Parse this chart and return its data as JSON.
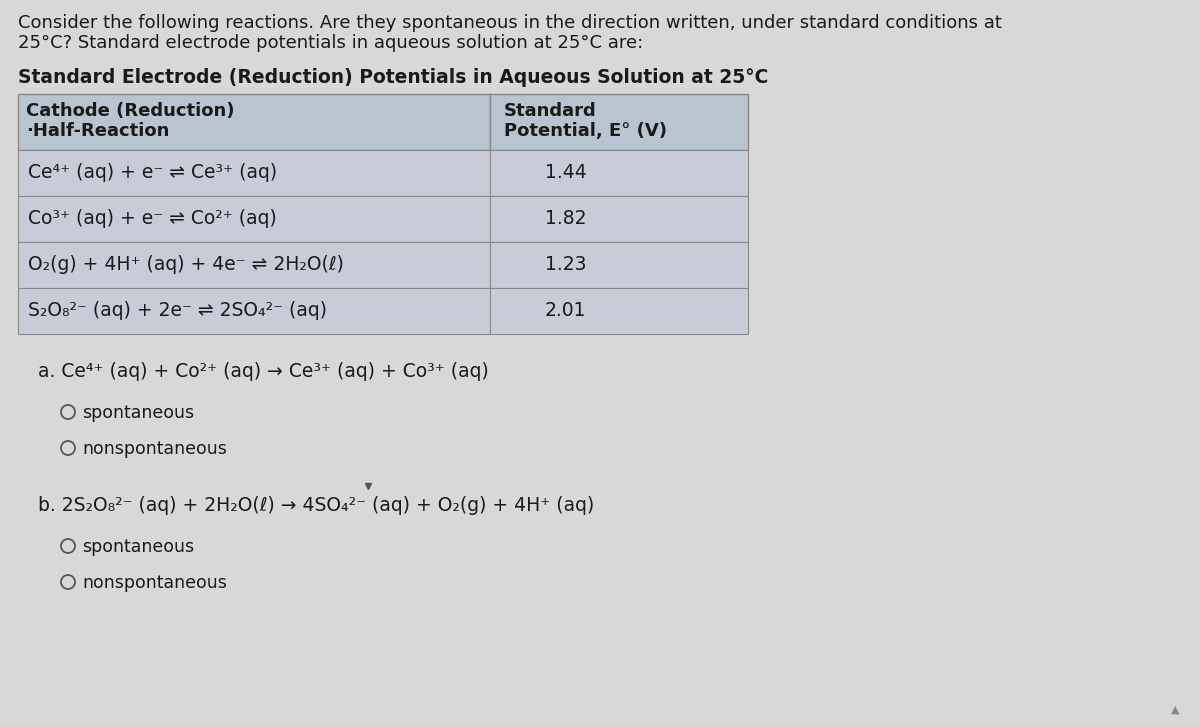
{
  "bg_color": "#d8d8d8",
  "intro_text_line1": "Consider the following reactions. Are they spontaneous in the direction written, under standard conditions at",
  "intro_text_line2": "25°C? Standard electrode potentials in aqueous solution at 25°C are:",
  "table_title": "Standard Electrode (Reduction) Potentials in Aqueous Solution at 25°C",
  "col1_header_line1": "Cathode (Reduction)",
  "col1_header_line2": "·Half-Reaction",
  "col2_header_line1": "Standard",
  "col2_header_line2": "Potential, E° (V)",
  "table_rows": [
    [
      "Ce⁴⁺ (aq) + e⁻ ⇌ Ce³⁺ (aq)",
      "1.44"
    ],
    [
      "Co³⁺ (aq) + e⁻ ⇌ Co²⁺ (aq)",
      "1.82"
    ],
    [
      "O₂(g) + 4H⁺ (aq) + 4e⁻ ⇌ 2H₂O(ℓ)",
      "1.23"
    ],
    [
      "S₂O₈²⁻ (aq) + 2e⁻ ⇌ 2SO₄²⁻ (aq)",
      "2.01"
    ]
  ],
  "question_a": "a. Ce⁴⁺ (aq) + Co²⁺ (aq) → Ce³⁺ (aq) + Co³⁺ (aq)",
  "question_b": "b. 2S₂O₈²⁻ (aq) + 2H₂O(ℓ) → 4SO₄²⁻ (aq) + O₂(g) + 4H⁺ (aq)",
  "choice_spontaneous": "spontaneous",
  "choice_nonspontaneous": "nonspontaneous",
  "table_header_bg": "#b8c4d0",
  "table_row_bg": "#c8ccd8",
  "table_border": "#888888",
  "text_color": "#1a1a1a",
  "radio_color": "#555555"
}
